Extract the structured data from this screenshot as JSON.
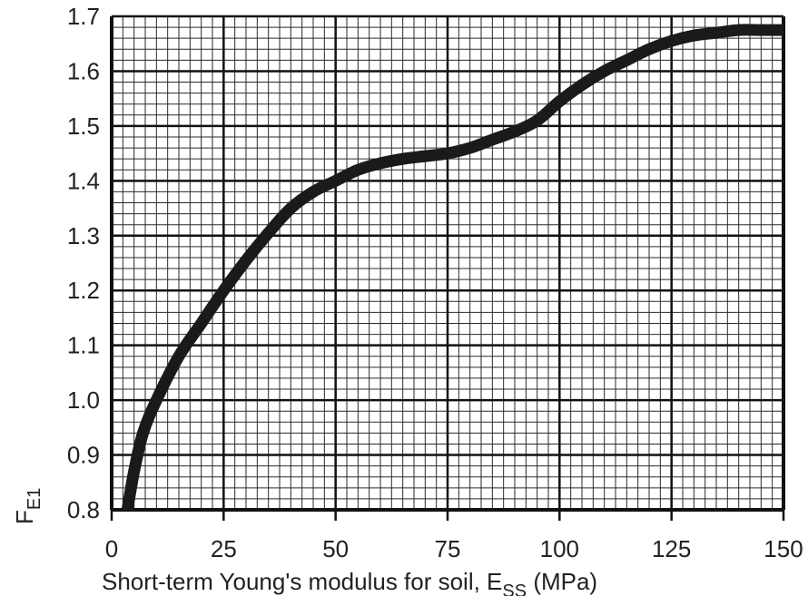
{
  "chart_data": {
    "type": "line",
    "xlabel": "Short-term Young's modulus for soil, E",
    "xlabel_sub": "SS",
    "xlabel_unit": " (MPa)",
    "ylabel": "F",
    "ylabel_sub": "E1",
    "xlim": [
      0,
      150
    ],
    "ylim": [
      0.8,
      1.7
    ],
    "x_ticks": [
      0,
      25,
      50,
      75,
      100,
      125,
      150
    ],
    "x_tick_labels": [
      "0",
      "25",
      "50",
      "75",
      "100",
      "125",
      "150"
    ],
    "y_ticks": [
      0.8,
      0.9,
      1.0,
      1.1,
      1.2,
      1.3,
      1.4,
      1.5,
      1.6,
      1.7
    ],
    "y_tick_labels": [
      "0.8",
      "0.9",
      "1.0",
      "1.1",
      "1.2",
      "1.3",
      "1.4",
      "1.5",
      "1.6",
      "1.7"
    ],
    "grid": true,
    "grid_minor_x_step": 2.5,
    "grid_minor_y_step": 0.02,
    "series": [
      {
        "color": "#1a1a1a",
        "points": [
          [
            3.5,
            0.8
          ],
          [
            5,
            0.87
          ],
          [
            7,
            0.94
          ],
          [
            10,
            1.0
          ],
          [
            15,
            1.08
          ],
          [
            20,
            1.14
          ],
          [
            25,
            1.2
          ],
          [
            30,
            1.255
          ],
          [
            35,
            1.305
          ],
          [
            40,
            1.35
          ],
          [
            45,
            1.38
          ],
          [
            50,
            1.4
          ],
          [
            55,
            1.42
          ],
          [
            60,
            1.432
          ],
          [
            65,
            1.44
          ],
          [
            70,
            1.445
          ],
          [
            75,
            1.45
          ],
          [
            80,
            1.46
          ],
          [
            85,
            1.475
          ],
          [
            90,
            1.49
          ],
          [
            95,
            1.51
          ],
          [
            100,
            1.545
          ],
          [
            105,
            1.575
          ],
          [
            110,
            1.6
          ],
          [
            115,
            1.62
          ],
          [
            120,
            1.64
          ],
          [
            125,
            1.655
          ],
          [
            130,
            1.665
          ],
          [
            135,
            1.67
          ],
          [
            140,
            1.675
          ],
          [
            145,
            1.675
          ],
          [
            150,
            1.675
          ]
        ]
      }
    ]
  }
}
